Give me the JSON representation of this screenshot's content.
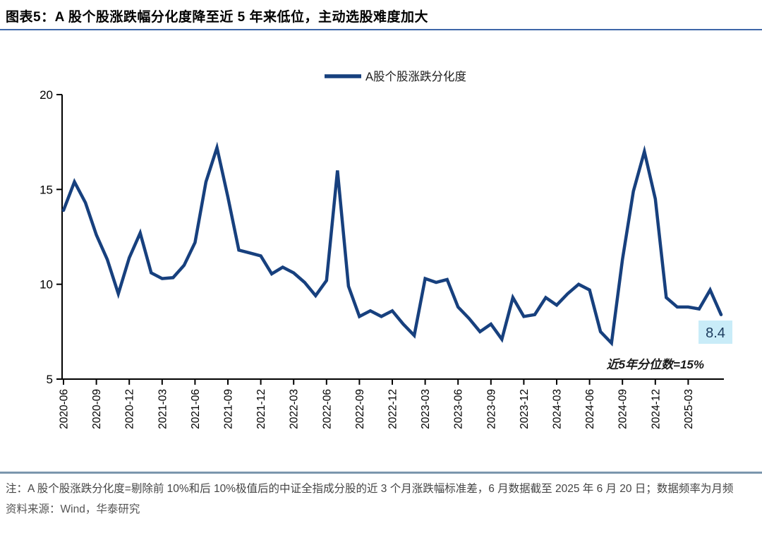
{
  "header": {
    "title": "图表5：A 股个股涨跌幅分化度降至近 5 年来低位，主动选股难度加大"
  },
  "footer": {
    "note": "注：A 股个股涨跌分化度=剔除前 10%和后 10%极值后的中证全指成分股的近 3 个月涨跌幅标准差，6 月数据截至 2025 年 6 月 20 日；数据频率为月频",
    "source": "资料来源：Wind，华泰研究"
  },
  "styles": {
    "title_underline": "#3E67A8",
    "footer_rule": "#7B96AD",
    "axis_color": "#000000",
    "text_color": "#1a1a1a"
  },
  "chart_data": {
    "type": "line",
    "title": "A股个股涨跌分化度",
    "legend": [
      {
        "label": "A股个股涨跌分化度",
        "color": "#17407E"
      }
    ],
    "legend_position": "top-center",
    "grid": false,
    "ylim": [
      5,
      20
    ],
    "yticks": [
      5,
      10,
      15,
      20
    ],
    "x_tick_labels": [
      "2020-06",
      "2020-09",
      "2020-12",
      "2021-03",
      "2021-06",
      "2021-09",
      "2021-12",
      "2022-03",
      "2022-06",
      "2022-09",
      "2022-12",
      "2023-03",
      "2023-06",
      "2023-09",
      "2023-12",
      "2024-03",
      "2024-06",
      "2024-09",
      "2024-12",
      "2025-03"
    ],
    "x": [
      "2020-06",
      "2020-07",
      "2020-08",
      "2020-09",
      "2020-10",
      "2020-11",
      "2020-12",
      "2021-01",
      "2021-02",
      "2021-03",
      "2021-04",
      "2021-05",
      "2021-06",
      "2021-07",
      "2021-08",
      "2021-09",
      "2021-10",
      "2021-11",
      "2021-12",
      "2022-01",
      "2022-02",
      "2022-03",
      "2022-04",
      "2022-05",
      "2022-06",
      "2022-07",
      "2022-08",
      "2022-09",
      "2022-10",
      "2022-11",
      "2022-12",
      "2023-01",
      "2023-02",
      "2023-03",
      "2023-04",
      "2023-05",
      "2023-06",
      "2023-07",
      "2023-08",
      "2023-09",
      "2023-10",
      "2023-11",
      "2023-12",
      "2024-01",
      "2024-02",
      "2024-03",
      "2024-04",
      "2024-05",
      "2024-06",
      "2024-07",
      "2024-08",
      "2024-09",
      "2024-10",
      "2024-11",
      "2024-12",
      "2025-01",
      "2025-02",
      "2025-03",
      "2025-04",
      "2025-05",
      "2025-06"
    ],
    "series": [
      {
        "name": "A股个股涨跌分化度",
        "values": [
          13.9,
          15.4,
          14.3,
          12.6,
          11.3,
          9.5,
          11.4,
          12.7,
          10.6,
          10.3,
          10.35,
          11.0,
          12.2,
          15.4,
          17.2,
          14.6,
          11.8,
          11.65,
          11.5,
          10.55,
          10.9,
          10.6,
          10.1,
          9.4,
          10.2,
          16.0,
          9.9,
          8.3,
          8.6,
          8.3,
          8.6,
          7.9,
          7.3,
          10.3,
          10.1,
          10.25,
          8.8,
          8.2,
          7.5,
          7.9,
          7.1,
          9.3,
          8.3,
          8.4,
          9.3,
          8.9,
          9.5,
          10.0,
          9.7,
          7.5,
          6.9,
          11.3,
          14.9,
          17.0,
          14.5,
          9.3,
          8.8,
          8.8,
          8.7,
          9.7,
          8.4
        ]
      }
    ],
    "line_color": "#17407E",
    "annotation": "近5年分位数=15%",
    "end_label": {
      "text": "8.4",
      "bg": "#C9ECF8",
      "text_color": "#1B3A5C"
    }
  }
}
